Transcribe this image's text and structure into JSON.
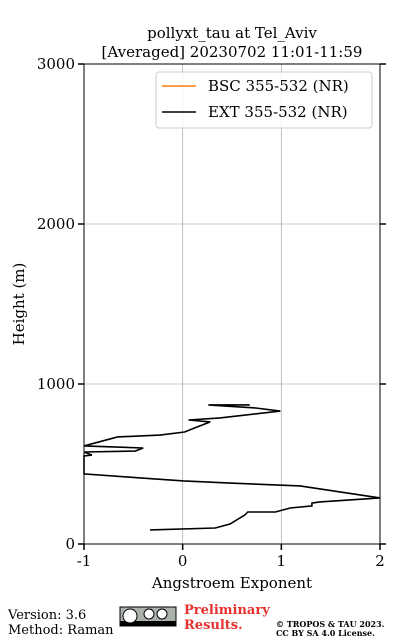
{
  "chart_data": {
    "type": "line",
    "title": "pollyxt_tau at Tel_Aviv",
    "subtitle": "[Averaged] 20230702 11:01-11:59",
    "x_label": "Angstroem Exponent",
    "y_label": "Height (m)",
    "xlim": [
      -1,
      2
    ],
    "ylim": [
      0,
      3000
    ],
    "xticks": [
      -1,
      0,
      1,
      2
    ],
    "yticks": [
      0,
      1000,
      2000,
      3000
    ],
    "grid": true,
    "legend": "upper right",
    "series": [
      {
        "name": "BSC 355-532 (NR)",
        "color": "#ff7f0e",
        "x": [],
        "y": []
      },
      {
        "name": "EXT 355-532 (NR)",
        "color": "#000000",
        "x": [
          -0.33,
          0.33,
          0.48,
          0.58,
          0.63,
          0.66,
          0.94,
          1.09,
          1.31,
          1.31,
          1.39,
          2.0,
          1.19,
          0.48,
          0.01,
          -0.43,
          -1.0,
          -1.0,
          -0.92,
          -1.0,
          -0.48,
          -0.4,
          -1.0,
          -0.66,
          -0.23,
          0.02,
          0.12,
          0.28,
          0.06,
          0.38,
          0.99,
          0.74,
          0.26,
          0.68
        ],
        "y": [
          88,
          100,
          125,
          163,
          181,
          200,
          200,
          225,
          238,
          256,
          263,
          288,
          363,
          381,
          394,
          413,
          438,
          550,
          556,
          575,
          581,
          600,
          613,
          669,
          681,
          700,
          725,
          763,
          775,
          788,
          831,
          850,
          869,
          869
        ]
      }
    ]
  },
  "footer": {
    "version": "Version: 3.6",
    "method": "Method: Raman",
    "status": "Preliminary Results.",
    "copyright": "© TROPOS & TAU 2023.",
    "license": "CC BY SA 4.0 License."
  }
}
